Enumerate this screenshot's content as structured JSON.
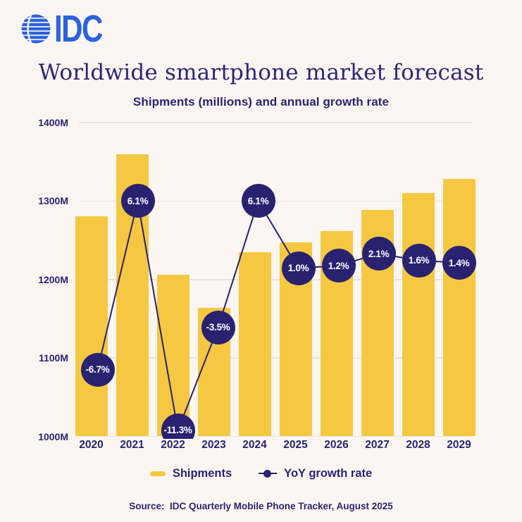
{
  "brand": {
    "logo_text": "IDC"
  },
  "chart_data": {
    "type": "combo-bar-line",
    "title": "Worldwide smartphone market forecast",
    "subtitle": "Shipments (millions) and annual growth rate",
    "categories": [
      "2020",
      "2021",
      "2022",
      "2023",
      "2024",
      "2025",
      "2026",
      "2027",
      "2028",
      "2029"
    ],
    "series": [
      {
        "name": "Shipments",
        "type": "bar",
        "unit": "millions",
        "values": [
          1281,
          1360,
          1206,
          1164,
          1235,
          1247,
          1262,
          1289,
          1310,
          1328
        ]
      },
      {
        "name": "YoY growth rate",
        "type": "line",
        "unit": "%",
        "values": [
          -6.7,
          6.1,
          -11.3,
          -3.5,
          6.1,
          1.0,
          1.2,
          2.1,
          1.6,
          1.4
        ],
        "labels": [
          "-6.7%",
          "6.1%",
          "-11.3%",
          "-3.5%",
          "6.1%",
          "1.0%",
          "1.2%",
          "2.1%",
          "1.6%",
          "1.4%"
        ]
      }
    ],
    "y_axis": {
      "min": 1000,
      "max": 1400,
      "ticks_top_to_bottom": [
        "1400M",
        "1300M",
        "1200M",
        "1100M",
        "1000M"
      ]
    },
    "grid": true,
    "legend_position": "bottom"
  },
  "source": "Source:  IDC Quarterly Mobile Phone Tracker, August 2025",
  "colors": {
    "background": "#FBF6F1",
    "bar_yellow": "#F6C842",
    "navy": "#292271",
    "text_navy": "#2B2373",
    "logo_blue": "#2B63DD",
    "gridline": "#E8E3E2",
    "marker_text": "#FFFFFF"
  }
}
